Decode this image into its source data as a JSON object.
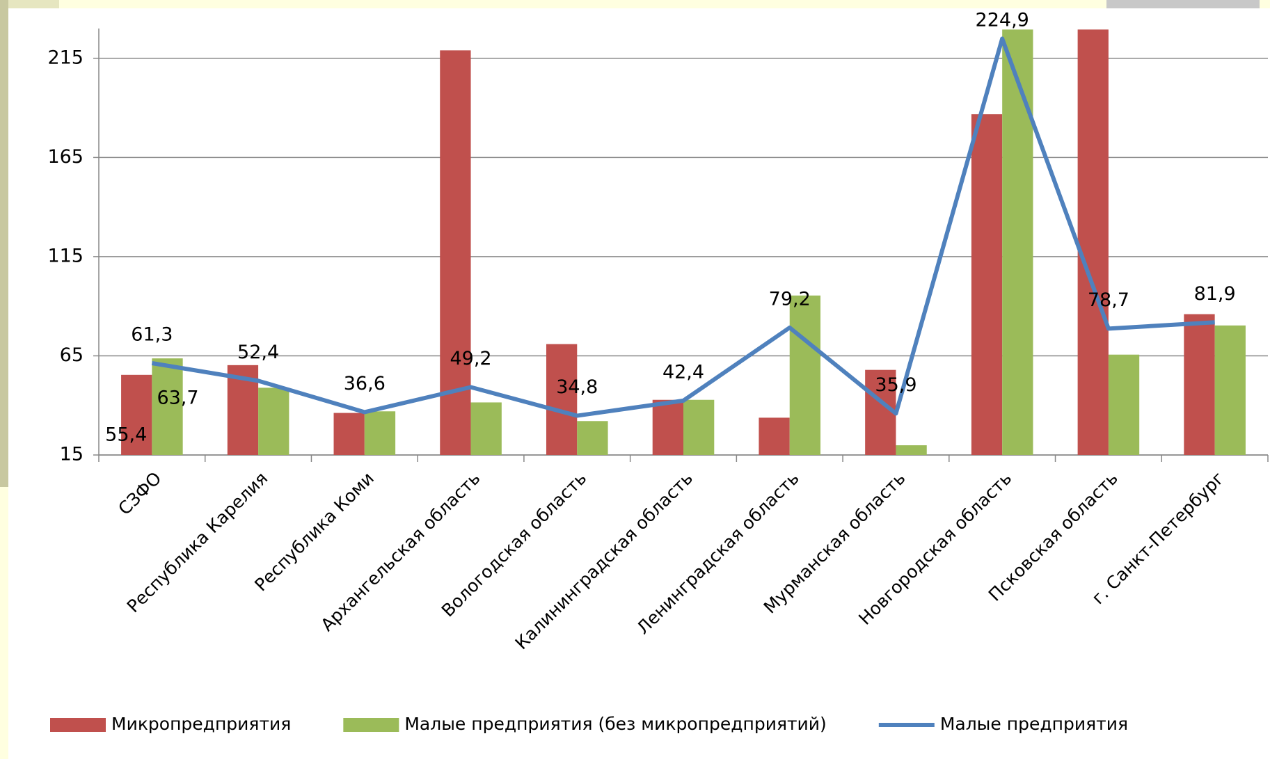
{
  "chart_data": {
    "type": "bar",
    "categories": [
      "СЗФО",
      "Республика Карелия",
      "Республика Коми",
      "Архангельская область",
      "Вологодская область",
      "Калининградская область",
      "Ленинградская область",
      "Мурманская область",
      "Новгородская область",
      "Псковская область",
      "г. Санкт-Петербург"
    ],
    "series": [
      {
        "name": "Микропредприятия",
        "color": "#c0504d",
        "type": "bar",
        "values": [
          55.4,
          60.3,
          36.2,
          219,
          70.9,
          42.8,
          33.8,
          57.9,
          186.8,
          229.5,
          86
        ],
        "value_labels": [
          "55,4",
          null,
          null,
          null,
          null,
          null,
          null,
          null,
          null,
          null,
          null
        ]
      },
      {
        "name": "Малые предприятия (без микропредприятий)",
        "color": "#9bbb59",
        "type": "bar",
        "values": [
          63.7,
          48.9,
          37,
          41.5,
          32.1,
          42.8,
          95.4,
          19.9,
          229.5,
          65.6,
          80.3
        ],
        "value_labels": [
          "63,7",
          null,
          null,
          null,
          null,
          null,
          null,
          null,
          null,
          null,
          null
        ]
      },
      {
        "name": "Малые предприятия",
        "color": "#4f81bd",
        "type": "line",
        "values": [
          61.3,
          52.4,
          36.6,
          49.2,
          34.8,
          42.4,
          79.2,
          35.9,
          224.9,
          78.7,
          81.9
        ],
        "value_labels": [
          "61,3",
          "52,4",
          "36,6",
          "49,2",
          "34,8",
          "42,4",
          "79,2",
          "35,9",
          "224,9",
          "78,7",
          "81,9"
        ]
      }
    ],
    "ylim": [
      15,
      230
    ],
    "yticks": [
      15,
      65,
      115,
      165,
      215
    ],
    "grid": true,
    "legend": "bottom"
  }
}
